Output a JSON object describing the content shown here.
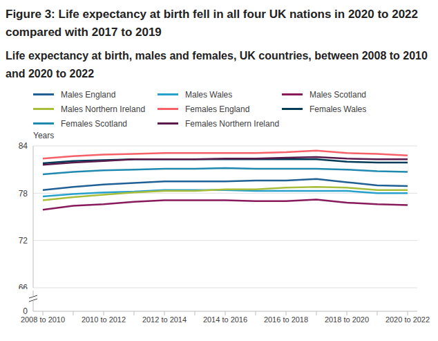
{
  "chart_data": {
    "type": "line",
    "title": "Figure 3: Life expectancy at birth fell in all four UK nations in 2020 to 2022 compared with 2017 to 2019",
    "subtitle": "Life expectancy at birth, males and females, UK countries, between 2008 to 2010 and 2020 to 2022",
    "y_label": "Years",
    "categories": [
      "2008 to 2010",
      null,
      "2010 to 2012",
      null,
      "2012 to 2014",
      null,
      "2014 to 2016",
      null,
      "2016 to 2018",
      null,
      "2018 to 2020",
      null,
      "2020 to 2022"
    ],
    "ylim": [
      0,
      84
    ],
    "yticks": [
      0,
      66,
      72,
      78,
      84
    ],
    "grid": true,
    "series": [
      {
        "name": "Males England",
        "color": "#206095",
        "values": [
          78.4,
          78.8,
          79.1,
          79.3,
          79.5,
          79.5,
          79.5,
          79.6,
          79.6,
          79.8,
          79.4,
          79.0,
          78.9
        ]
      },
      {
        "name": "Males Wales",
        "color": "#27a0cc",
        "values": [
          77.6,
          77.9,
          78.1,
          78.2,
          78.4,
          78.4,
          78.4,
          78.3,
          78.3,
          78.3,
          78.3,
          78.0,
          78.0
        ]
      },
      {
        "name": "Males Scotland",
        "color": "#871a5b",
        "values": [
          75.9,
          76.4,
          76.6,
          76.9,
          77.1,
          77.1,
          77.1,
          77.0,
          77.0,
          77.2,
          76.8,
          76.6,
          76.5
        ]
      },
      {
        "name": "Males Northern Ireland",
        "color": "#a8bd3a",
        "values": [
          77.1,
          77.5,
          77.8,
          78.1,
          78.3,
          78.3,
          78.5,
          78.5,
          78.7,
          78.8,
          78.7,
          78.4,
          78.4
        ]
      },
      {
        "name": "Females England",
        "color": "#f66068",
        "values": [
          82.4,
          82.7,
          82.9,
          83.0,
          83.1,
          83.1,
          83.1,
          83.1,
          83.2,
          83.4,
          83.1,
          83.0,
          82.8
        ]
      },
      {
        "name": "Females Wales",
        "color": "#003c57",
        "values": [
          81.8,
          82.1,
          82.2,
          82.3,
          82.3,
          82.3,
          82.3,
          82.3,
          82.3,
          82.3,
          82.0,
          81.9,
          81.9
        ]
      },
      {
        "name": "Females Scotland",
        "color": "#2089b0",
        "values": [
          80.4,
          80.7,
          80.9,
          81.0,
          81.1,
          81.1,
          81.2,
          81.1,
          81.1,
          81.1,
          81.0,
          80.8,
          80.7
        ]
      },
      {
        "name": "Females Northern Ireland",
        "color": "#5a1a4c",
        "values": [
          81.6,
          81.9,
          82.1,
          82.3,
          82.3,
          82.3,
          82.4,
          82.4,
          82.5,
          82.6,
          82.4,
          82.3,
          82.3
        ]
      }
    ]
  }
}
